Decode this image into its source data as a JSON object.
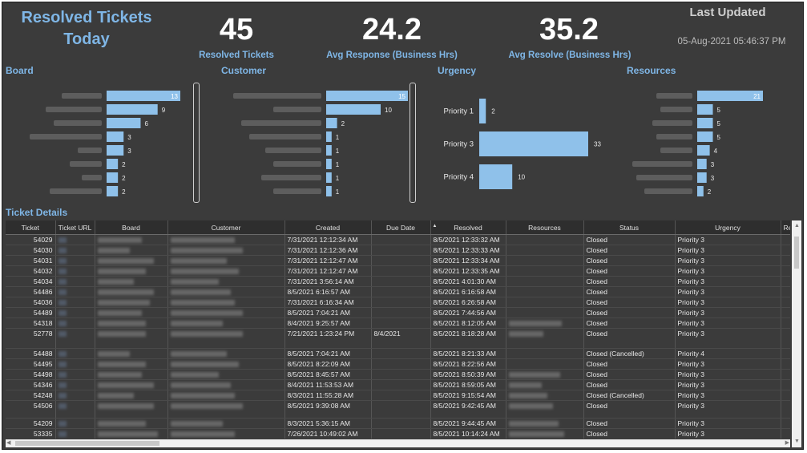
{
  "header": {
    "title_line1": "Resolved Tickets",
    "title_line2": "Today",
    "kpis": [
      {
        "value": "45",
        "label": "Resolved Tickets"
      },
      {
        "value": "24.2",
        "label": "Avg Response (Business Hrs)"
      },
      {
        "value": "35.2",
        "label": "Avg Resolve (Business Hrs)"
      }
    ],
    "last_updated_label": "Last Updated",
    "last_updated_value": "05-Aug-2021 05:46:37 PM"
  },
  "sections": {
    "board": "Board",
    "customer": "Customer",
    "urgency": "Urgency",
    "resources": "Resources",
    "ticket_details": "Ticket Details"
  },
  "chart_data": [
    {
      "type": "bar",
      "title": "Board",
      "orientation": "horizontal",
      "categories_redacted": true,
      "values": [
        13,
        9,
        6,
        3,
        3,
        2,
        2,
        2
      ]
    },
    {
      "type": "bar",
      "title": "Customer",
      "orientation": "horizontal",
      "categories_redacted": true,
      "values": [
        15,
        10,
        2,
        1,
        1,
        1,
        1,
        1
      ]
    },
    {
      "type": "bar",
      "title": "Urgency",
      "orientation": "horizontal",
      "categories": [
        "Priority 1",
        "Priority 3",
        "Priority 4"
      ],
      "values": [
        2,
        33,
        10
      ]
    },
    {
      "type": "bar",
      "title": "Resources",
      "orientation": "horizontal",
      "categories_redacted": true,
      "values": [
        21,
        5,
        5,
        5,
        4,
        3,
        3,
        2
      ]
    }
  ],
  "colors": {
    "bar": "#8fc1ea",
    "background": "#3b3b3b",
    "accent": "#7fb6e6"
  },
  "table": {
    "columns": [
      "Ticket",
      "Ticket URL",
      "Board",
      "Customer",
      "Created",
      "Due Date",
      "Resolved",
      "Resources",
      "Status",
      "Urgency",
      "Re"
    ],
    "rows": [
      {
        "ticket": "54029",
        "created": "7/31/2021 12:12:34 AM",
        "due": "",
        "resolved": "8/5/2021 12:33:32 AM",
        "status": "Closed",
        "urgency": "Priority 3",
        "h": "r",
        "res": false
      },
      {
        "ticket": "54030",
        "created": "7/31/2021 12:12:36 AM",
        "due": "",
        "resolved": "8/5/2021 12:33:33 AM",
        "status": "Closed",
        "urgency": "Priority 3",
        "h": "r",
        "res": false
      },
      {
        "ticket": "54031",
        "created": "7/31/2021 12:12:47 AM",
        "due": "",
        "resolved": "8/5/2021 12:33:34 AM",
        "status": "Closed",
        "urgency": "Priority 3",
        "h": "r",
        "res": false
      },
      {
        "ticket": "54032",
        "created": "7/31/2021 12:12:47 AM",
        "due": "",
        "resolved": "8/5/2021 12:33:35 AM",
        "status": "Closed",
        "urgency": "Priority 3",
        "h": "r",
        "res": false
      },
      {
        "ticket": "54034",
        "created": "7/31/2021 3:56:14 AM",
        "due": "",
        "resolved": "8/5/2021 4:01:30 AM",
        "status": "Closed",
        "urgency": "Priority 3",
        "h": "r",
        "res": false
      },
      {
        "ticket": "54486",
        "created": "8/5/2021 6:16:57 AM",
        "due": "",
        "resolved": "8/5/2021 6:16:58 AM",
        "status": "Closed",
        "urgency": "Priority 3",
        "h": "r",
        "res": false
      },
      {
        "ticket": "54036",
        "created": "7/31/2021 6:16:34 AM",
        "due": "",
        "resolved": "8/5/2021 6:26:58 AM",
        "status": "Closed",
        "urgency": "Priority 3",
        "h": "r",
        "res": false
      },
      {
        "ticket": "54489",
        "created": "8/5/2021 7:04:21 AM",
        "due": "",
        "resolved": "8/5/2021 7:44:56 AM",
        "status": "Closed",
        "urgency": "Priority 3",
        "h": "r",
        "res": false
      },
      {
        "ticket": "54318",
        "created": "8/4/2021 9:25:57 AM",
        "due": "",
        "resolved": "8/5/2021 8:12:05 AM",
        "status": "Closed",
        "urgency": "Priority 3",
        "h": "r",
        "res": true
      },
      {
        "ticket": "52778",
        "created": "7/21/2021 1:23:24 PM",
        "due": "8/4/2021",
        "resolved": "8/5/2021 8:18:28 AM",
        "status": "Closed",
        "urgency": "Priority 3",
        "h": "tall",
        "res": true
      },
      {
        "ticket": "54488",
        "created": "8/5/2021 7:04:21 AM",
        "due": "",
        "resolved": "8/5/2021 8:21:33 AM",
        "status": "Closed (Cancelled)",
        "urgency": "Priority 4",
        "h": "r",
        "res": false
      },
      {
        "ticket": "54495",
        "created": "8/5/2021 8:22:09 AM",
        "due": "",
        "resolved": "8/5/2021 8:22:56 AM",
        "status": "Closed",
        "urgency": "Priority 3",
        "h": "r",
        "res": false
      },
      {
        "ticket": "54498",
        "created": "8/5/2021 8:45:57 AM",
        "due": "",
        "resolved": "8/5/2021 8:50:39 AM",
        "status": "Closed",
        "urgency": "Priority 3",
        "h": "r",
        "res": true
      },
      {
        "ticket": "54346",
        "created": "8/4/2021 11:53:53 AM",
        "due": "",
        "resolved": "8/5/2021 8:59:05 AM",
        "status": "Closed",
        "urgency": "Priority 3",
        "h": "r",
        "res": true
      },
      {
        "ticket": "54248",
        "created": "8/3/2021 11:55:28 AM",
        "due": "",
        "resolved": "8/5/2021 9:15:54 AM",
        "status": "Closed (Cancelled)",
        "urgency": "Priority 3",
        "h": "r",
        "res": true
      },
      {
        "ticket": "54506",
        "created": "8/5/2021 9:39:08 AM",
        "due": "",
        "resolved": "8/5/2021 9:42:45 AM",
        "status": "Closed",
        "urgency": "Priority 3",
        "h": "mid",
        "res": true
      },
      {
        "ticket": "54209",
        "created": "8/3/2021 5:36:15 AM",
        "due": "",
        "resolved": "8/5/2021 9:44:45 AM",
        "status": "Closed",
        "urgency": "Priority 3",
        "h": "r",
        "res": true
      },
      {
        "ticket": "53335",
        "created": "7/26/2021 10:49:02 AM",
        "due": "",
        "resolved": "8/5/2021 10:14:24 AM",
        "status": "Closed",
        "urgency": "Priority 3",
        "h": "r",
        "res": true
      }
    ]
  }
}
